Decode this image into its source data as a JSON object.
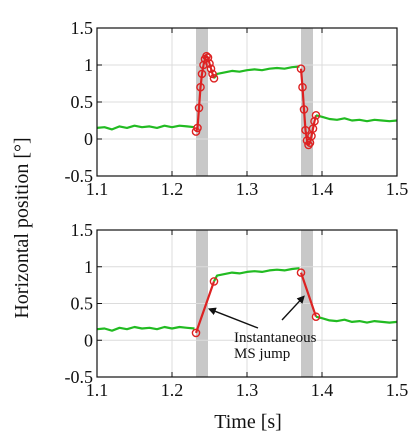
{
  "chart_data": [
    {
      "type": "line",
      "panel": "top",
      "ylabel": "Horizontal position [°]",
      "xlim": [
        1.1,
        1.5
      ],
      "ylim": [
        -0.5,
        1.5
      ],
      "x_ticks": [
        "1.1",
        "1.2",
        "1.3",
        "1.4",
        "1.5"
      ],
      "y_ticks": [
        "-0.5",
        "0",
        "0.5",
        "1",
        "1.5"
      ],
      "grid": true,
      "shaded_intervals": [
        [
          1.232,
          1.248
        ],
        [
          1.372,
          1.388
        ]
      ],
      "series": [
        {
          "color": "#22bb22",
          "x": [
            1.1,
            1.11,
            1.12,
            1.13,
            1.14,
            1.15,
            1.16,
            1.17,
            1.18,
            1.19,
            1.2,
            1.21,
            1.22,
            1.23
          ],
          "y": [
            0.15,
            0.16,
            0.13,
            0.17,
            0.15,
            0.18,
            0.16,
            0.17,
            0.15,
            0.18,
            0.16,
            0.18,
            0.17,
            0.16
          ]
        },
        {
          "color": "#dd2222",
          "marker": "circle",
          "x": [
            1.232,
            1.234,
            1.236,
            1.238,
            1.24,
            1.242,
            1.244,
            1.246,
            1.248,
            1.25,
            1.252,
            1.254,
            1.256
          ],
          "y": [
            0.1,
            0.15,
            0.42,
            0.7,
            0.88,
            1.0,
            1.08,
            1.12,
            1.1,
            1.02,
            0.95,
            0.88,
            0.82
          ]
        },
        {
          "color": "#22bb22",
          "x": [
            1.256,
            1.26,
            1.27,
            1.28,
            1.29,
            1.3,
            1.31,
            1.32,
            1.33,
            1.34,
            1.35,
            1.36,
            1.37
          ],
          "y": [
            0.82,
            0.88,
            0.9,
            0.92,
            0.91,
            0.93,
            0.94,
            0.93,
            0.95,
            0.96,
            0.95,
            0.97,
            0.98
          ]
        },
        {
          "color": "#dd2222",
          "marker": "circle",
          "x": [
            1.372,
            1.374,
            1.376,
            1.378,
            1.38,
            1.382,
            1.384,
            1.386,
            1.388,
            1.39,
            1.392
          ],
          "y": [
            0.95,
            0.7,
            0.4,
            0.12,
            -0.02,
            -0.08,
            -0.05,
            0.04,
            0.14,
            0.24,
            0.32
          ]
        },
        {
          "color": "#22bb22",
          "x": [
            1.392,
            1.4,
            1.41,
            1.42,
            1.43,
            1.44,
            1.45,
            1.46,
            1.47,
            1.48,
            1.49,
            1.5
          ],
          "y": [
            0.32,
            0.3,
            0.27,
            0.26,
            0.28,
            0.25,
            0.26,
            0.24,
            0.26,
            0.25,
            0.24,
            0.25
          ]
        }
      ]
    },
    {
      "type": "line",
      "panel": "bottom",
      "xlabel": "Time [s]",
      "xlim": [
        1.1,
        1.5
      ],
      "ylim": [
        -0.5,
        1.5
      ],
      "x_ticks": [
        "1.1",
        "1.2",
        "1.3",
        "1.4",
        "1.5"
      ],
      "y_ticks": [
        "-0.5",
        "0",
        "0.5",
        "1",
        "1.5"
      ],
      "grid": true,
      "shaded_intervals": [
        [
          1.232,
          1.248
        ],
        [
          1.372,
          1.388
        ]
      ],
      "annotations": [
        {
          "text": "Instantaneous",
          "xy": [
            1.245,
            0.45
          ]
        },
        {
          "text": "MS jump",
          "xy": [
            1.37,
            0.7
          ]
        }
      ],
      "series": [
        {
          "color": "#22bb22",
          "x": [
            1.1,
            1.11,
            1.12,
            1.13,
            1.14,
            1.15,
            1.16,
            1.17,
            1.18,
            1.19,
            1.2,
            1.21,
            1.22,
            1.23
          ],
          "y": [
            0.15,
            0.16,
            0.13,
            0.17,
            0.15,
            0.18,
            0.16,
            0.17,
            0.15,
            0.18,
            0.16,
            0.18,
            0.17,
            0.16
          ]
        },
        {
          "color": "#dd2222",
          "marker": "circle",
          "x": [
            1.232,
            1.256
          ],
          "y": [
            0.1,
            0.8
          ]
        },
        {
          "color": "#22bb22",
          "x": [
            1.256,
            1.26,
            1.27,
            1.28,
            1.29,
            1.3,
            1.31,
            1.32,
            1.33,
            1.34,
            1.35,
            1.36,
            1.37
          ],
          "y": [
            0.8,
            0.88,
            0.9,
            0.92,
            0.91,
            0.93,
            0.94,
            0.93,
            0.95,
            0.96,
            0.95,
            0.97,
            0.98
          ]
        },
        {
          "color": "#dd2222",
          "marker": "circle",
          "x": [
            1.372,
            1.392
          ],
          "y": [
            0.92,
            0.32
          ]
        },
        {
          "color": "#22bb22",
          "x": [
            1.392,
            1.4,
            1.41,
            1.42,
            1.43,
            1.44,
            1.45,
            1.46,
            1.47,
            1.48,
            1.49,
            1.5
          ],
          "y": [
            0.32,
            0.3,
            0.27,
            0.26,
            0.28,
            0.25,
            0.26,
            0.24,
            0.26,
            0.25,
            0.24,
            0.25
          ]
        }
      ]
    }
  ]
}
